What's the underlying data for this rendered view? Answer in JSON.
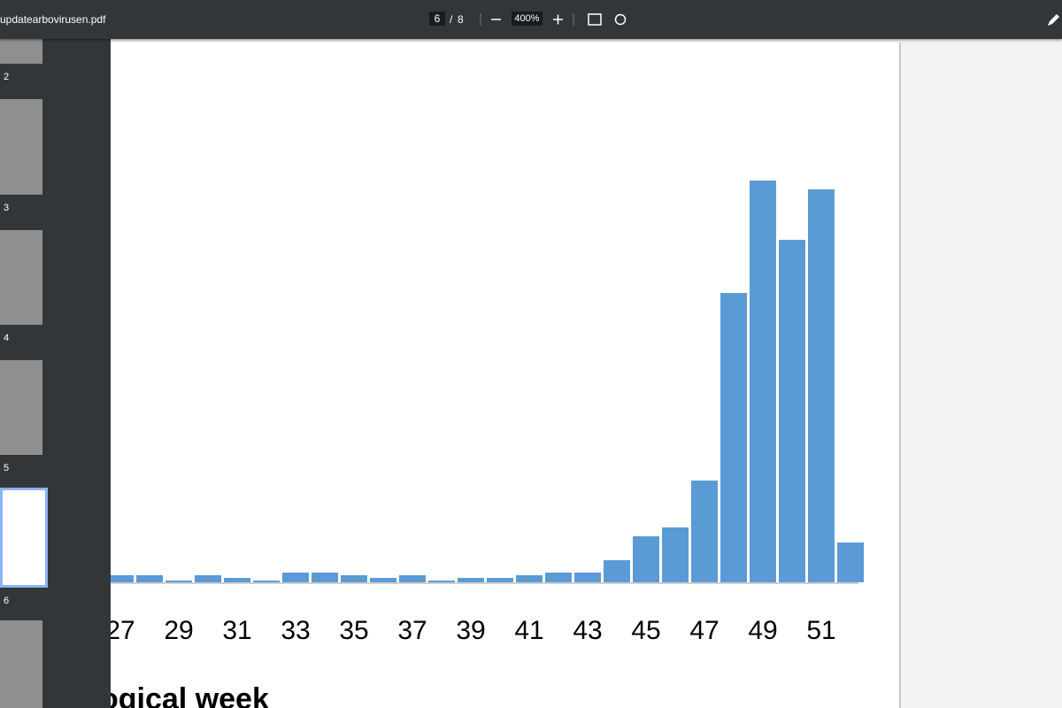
{
  "toolbar": {
    "filename": "updatearbovirusen.pdf",
    "page": "6",
    "separator": "/",
    "page_count": "8",
    "zoom": "400%"
  },
  "sidebar": {
    "thumbnails": [
      "2",
      "3",
      "4",
      "5",
      "6"
    ]
  },
  "chart_data": {
    "type": "bar",
    "color": "#5b9bd5",
    "categories": [
      "27",
      null,
      "29",
      null,
      "31",
      null,
      "33",
      null,
      "35",
      null,
      "37",
      null,
      "39",
      null,
      "41",
      null,
      "43",
      null,
      "45",
      null,
      "47",
      null,
      "49",
      null,
      "51",
      null
    ],
    "values": [
      8,
      8,
      2,
      8,
      5,
      2,
      11,
      11,
      8,
      5,
      8,
      2,
      5,
      5,
      8,
      11,
      11,
      25,
      52,
      62,
      115,
      327,
      454,
      387,
      444,
      45
    ],
    "x_label": "ogical week"
  }
}
